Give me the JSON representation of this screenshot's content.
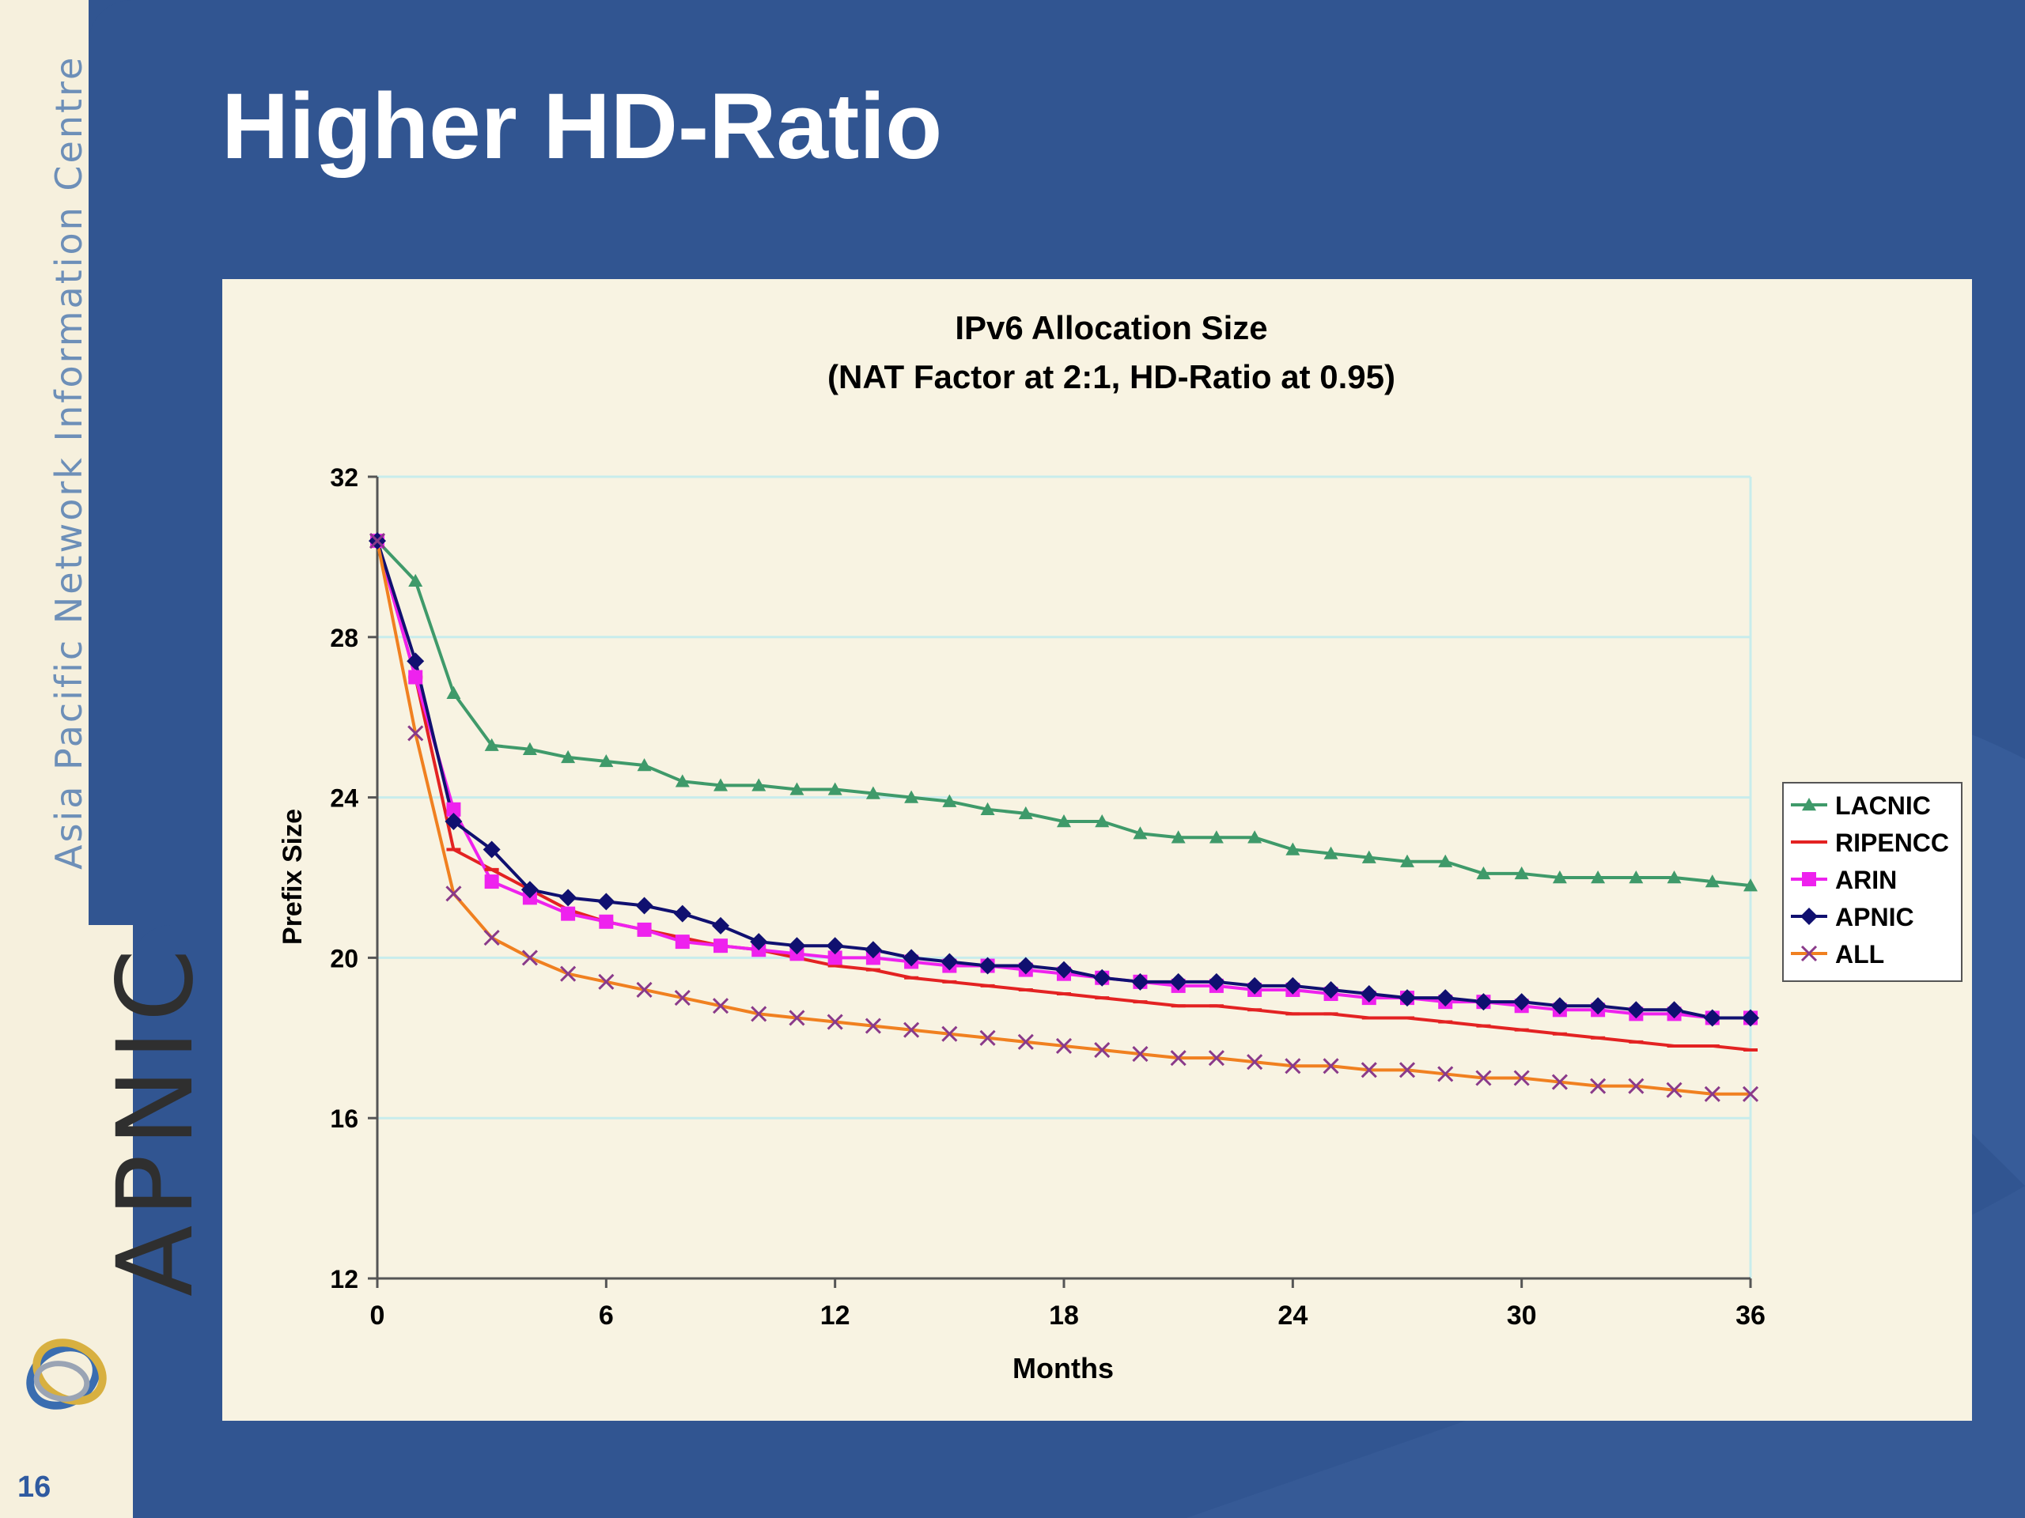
{
  "slide": {
    "title": "Higher HD-Ratio",
    "page_number": "16"
  },
  "branding": {
    "org_name": "Asia Pacific Network Information Centre",
    "logo_text": "APNIC",
    "logo_icon": "apnic-rings-icon"
  },
  "colors": {
    "background_blue": "#315591",
    "sidebar_cream": "#f6f0dd",
    "plot_background": "#f8f3e2",
    "grid": "#c8ecec"
  },
  "chart_data": {
    "type": "line",
    "title": "IPv6 Allocation Size",
    "subtitle": "(NAT Factor at 2:1, HD-Ratio at 0.95)",
    "xlabel": "Months",
    "ylabel": "Prefix Size",
    "xlim": [
      0,
      36
    ],
    "ylim": [
      12,
      32
    ],
    "xticks": [
      "0",
      "6",
      "12",
      "18",
      "24",
      "30",
      "36"
    ],
    "yticks": [
      "12",
      "16",
      "20",
      "24",
      "28",
      "32"
    ],
    "grid": "horizontal",
    "legend_position": "right",
    "x": [
      0,
      1,
      2,
      3,
      4,
      5,
      6,
      7,
      8,
      9,
      10,
      11,
      12,
      13,
      14,
      15,
      16,
      17,
      18,
      19,
      20,
      21,
      22,
      23,
      24,
      25,
      26,
      27,
      28,
      29,
      30,
      31,
      32,
      33,
      34,
      35,
      36
    ],
    "series": [
      {
        "name": "LACNIC",
        "color": "#3f9a6a",
        "marker": "triangle",
        "values": [
          30.4,
          29.4,
          26.6,
          25.3,
          25.2,
          25.0,
          24.9,
          24.8,
          24.4,
          24.3,
          24.3,
          24.2,
          24.2,
          24.1,
          24.0,
          23.9,
          23.7,
          23.6,
          23.4,
          23.4,
          23.1,
          23.0,
          23.0,
          23.0,
          22.7,
          22.6,
          22.5,
          22.4,
          22.4,
          22.1,
          22.1,
          22.0,
          22.0,
          22.0,
          22.0,
          21.9,
          21.8
        ]
      },
      {
        "name": "RIPENCC",
        "color": "#e32222",
        "marker": "dash",
        "values": [
          30.4,
          27.0,
          22.7,
          22.2,
          21.7,
          21.2,
          20.9,
          20.7,
          20.5,
          20.3,
          20.2,
          20.0,
          19.8,
          19.7,
          19.5,
          19.4,
          19.3,
          19.2,
          19.1,
          19.0,
          18.9,
          18.8,
          18.8,
          18.7,
          18.6,
          18.6,
          18.5,
          18.5,
          18.4,
          18.3,
          18.2,
          18.1,
          18.0,
          17.9,
          17.8,
          17.8,
          17.7
        ]
      },
      {
        "name": "ARIN",
        "color": "#ee22ee",
        "marker": "square",
        "values": [
          30.4,
          27.0,
          23.7,
          21.9,
          21.5,
          21.1,
          20.9,
          20.7,
          20.4,
          20.3,
          20.2,
          20.1,
          20.0,
          20.0,
          19.9,
          19.8,
          19.8,
          19.7,
          19.6,
          19.5,
          19.4,
          19.3,
          19.3,
          19.2,
          19.2,
          19.1,
          19.0,
          19.0,
          18.9,
          18.9,
          18.8,
          18.7,
          18.7,
          18.6,
          18.6,
          18.5,
          18.5
        ]
      },
      {
        "name": "APNIC",
        "color": "#101070",
        "marker": "diamond",
        "values": [
          30.4,
          27.4,
          23.4,
          22.7,
          21.7,
          21.5,
          21.4,
          21.3,
          21.1,
          20.8,
          20.4,
          20.3,
          20.3,
          20.2,
          20.0,
          19.9,
          19.8,
          19.8,
          19.7,
          19.5,
          19.4,
          19.4,
          19.4,
          19.3,
          19.3,
          19.2,
          19.1,
          19.0,
          19.0,
          18.9,
          18.9,
          18.8,
          18.8,
          18.7,
          18.7,
          18.5,
          18.5
        ]
      },
      {
        "name": "ALL",
        "color": "#f08020",
        "marker": "x",
        "values": [
          30.4,
          25.6,
          21.6,
          20.5,
          20.0,
          19.6,
          19.4,
          19.2,
          19.0,
          18.8,
          18.6,
          18.5,
          18.4,
          18.3,
          18.2,
          18.1,
          18.0,
          17.9,
          17.8,
          17.7,
          17.6,
          17.5,
          17.5,
          17.4,
          17.3,
          17.3,
          17.2,
          17.2,
          17.1,
          17.0,
          17.0,
          16.9,
          16.8,
          16.8,
          16.7,
          16.6,
          16.6
        ]
      }
    ]
  }
}
